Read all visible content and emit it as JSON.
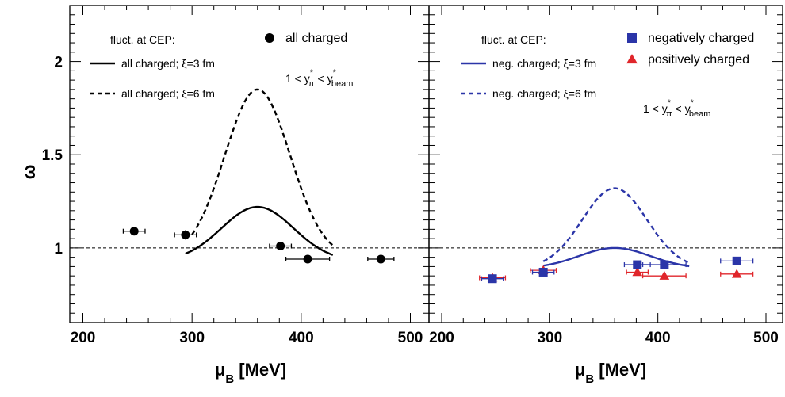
{
  "chart_data": {
    "type": "scatter",
    "ylabel": "ω",
    "ylim": [
      0.6,
      2.3
    ],
    "yticks": [
      "1",
      "1.5",
      "2"
    ],
    "xlim": [
      190,
      510
    ],
    "xticks": [
      "200",
      "300",
      "400",
      "500"
    ],
    "reference_line_y": 1,
    "colors": {
      "black": "#000000",
      "blue": "#2b35a8",
      "red": "#e0262b"
    },
    "panels": [
      {
        "xlabel": {
          "main": "μ",
          "sub": "B",
          "rest": " [MeV]"
        },
        "legend_header": "fluct. at CEP:",
        "legend_curves": [
          {
            "label": "all charged; ξ=3 fm",
            "style": "solid",
            "color": "#000000"
          },
          {
            "label": "all charged; ξ=6 fm",
            "style": "dashed",
            "color": "#000000"
          }
        ],
        "legend_markers": [
          {
            "label": "all charged",
            "marker": "circle",
            "color": "#000000"
          }
        ],
        "rapidity": {
          "prefix": "1 < y",
          "sup1": "*",
          "sub1": "π",
          "mid": " < y",
          "sup2": "*",
          "sub2": "beam"
        },
        "series": [
          {
            "name": "all charged",
            "marker": "circle",
            "color": "#000000",
            "points": [
              {
                "x": 247,
                "y": 1.09,
                "xerr": 10,
                "yerr": 0.01
              },
              {
                "x": 294,
                "y": 1.07,
                "xerr": 10,
                "yerr": 0.025
              },
              {
                "x": 381,
                "y": 1.01,
                "xerr": 10,
                "yerr": 0.01
              },
              {
                "x": 406,
                "y": 0.94,
                "xerr": 20,
                "yerr": 0.01
              },
              {
                "x": 473,
                "y": 0.94,
                "xerr": 12,
                "yerr": 0.01
              }
            ]
          }
        ],
        "curves": [
          {
            "style": "solid",
            "color": "#000000",
            "baseline": 0.93,
            "amplitude": 0.29,
            "center": 360,
            "sigma": 33,
            "xrange": [
              294,
              429
            ]
          },
          {
            "style": "dashed",
            "color": "#000000",
            "baseline": 0.95,
            "amplitude": 0.9,
            "center": 360,
            "sigma": 30,
            "xrange": [
              300,
              429
            ]
          }
        ]
      },
      {
        "xlabel": {
          "main": "μ",
          "sub": "B",
          "rest": " [MeV]"
        },
        "legend_header": "fluct. at CEP:",
        "legend_curves": [
          {
            "label": "neg. charged; ξ=3 fm",
            "style": "solid",
            "color": "#2b35a8"
          },
          {
            "label": "neg. charged; ξ=6 fm",
            "style": "dashed",
            "color": "#2b35a8"
          }
        ],
        "legend_markers": [
          {
            "label": "negatively charged",
            "marker": "square",
            "color": "#2b35a8"
          },
          {
            "label": "positively charged",
            "marker": "triangle",
            "color": "#e0262b"
          }
        ],
        "rapidity": {
          "prefix": "1 < y",
          "sup1": "*",
          "sub1": "π",
          "mid": " < y",
          "sup2": "*",
          "sub2": "beam"
        },
        "series": [
          {
            "name": "positively charged",
            "marker": "triangle",
            "color": "#e0262b",
            "points": [
              {
                "x": 247,
                "y": 0.84,
                "xerr": 12,
                "yerr": 0.005
              },
              {
                "x": 294,
                "y": 0.88,
                "xerr": 12,
                "yerr": 0.01
              },
              {
                "x": 381,
                "y": 0.87,
                "xerr": 10,
                "yerr": 0.01
              },
              {
                "x": 406,
                "y": 0.85,
                "xerr": 20,
                "yerr": 0.01
              },
              {
                "x": 473,
                "y": 0.86,
                "xerr": 15,
                "yerr": 0.005
              }
            ]
          },
          {
            "name": "negatively charged",
            "marker": "square",
            "color": "#2b35a8",
            "points": [
              {
                "x": 247,
                "y": 0.835,
                "xerr": 10,
                "yerr": 0.005
              },
              {
                "x": 294,
                "y": 0.87,
                "xerr": 10,
                "yerr": 0.02
              },
              {
                "x": 381,
                "y": 0.91,
                "xerr": 12,
                "yerr": 0.01
              },
              {
                "x": 406,
                "y": 0.91,
                "xerr": 20,
                "yerr": 0.01
              },
              {
                "x": 473,
                "y": 0.93,
                "xerr": 15,
                "yerr": 0.005
              }
            ]
          }
        ],
        "curves": [
          {
            "style": "solid",
            "color": "#2b35a8",
            "baseline": 0.89,
            "amplitude": 0.11,
            "center": 360,
            "sigma": 33,
            "xrange": [
              294,
              429
            ]
          },
          {
            "style": "dashed",
            "color": "#2b35a8",
            "baseline": 0.89,
            "amplitude": 0.43,
            "center": 360,
            "sigma": 30,
            "xrange": [
              294,
              429
            ]
          }
        ]
      }
    ]
  }
}
